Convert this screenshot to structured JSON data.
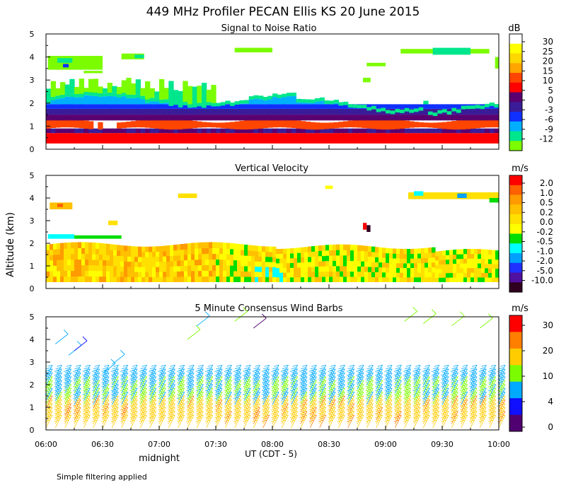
{
  "chart_data": [
    {
      "type": "heatmap",
      "title": "Signal to Noise Ratio",
      "unit": "dB",
      "ylim": [
        0,
        5
      ],
      "yticks": [
        "0",
        "1",
        "2",
        "3",
        "4",
        "5"
      ],
      "colorbar": [
        "30",
        "25",
        "20",
        "15",
        "10",
        "5",
        "0",
        "-3",
        "-6",
        "-9",
        "-12"
      ],
      "colors": [
        "#ffffff",
        "#ffff00",
        "#ffd700",
        "#ffa500",
        "#ff4500",
        "#ff0000",
        "#5a0070",
        "#3a1c99",
        "#1030ff",
        "#00b0ff",
        "#00e68c",
        "#7cfc00"
      ]
    },
    {
      "type": "heatmap",
      "title": "Vertical Velocity",
      "unit": "m/s",
      "ylim": [
        0,
        5
      ],
      "yticks": [
        "0",
        "1",
        "2",
        "3",
        "4",
        "5"
      ],
      "colorbar": [
        "2.0",
        "1.0",
        "0.5",
        "0.2",
        "0.0",
        "-0.2",
        "-0.5",
        "-1.0",
        "-2.0",
        "-5.0",
        "-10.0"
      ],
      "colors": [
        "#ff0000",
        "#ff6000",
        "#ff9a00",
        "#ffc000",
        "#ffe000",
        "#ffff00",
        "#00dd00",
        "#00ffff",
        "#00a0ff",
        "#2030ff",
        "#5010a0",
        "#300020"
      ]
    },
    {
      "type": "scatter",
      "title": "5 Minute Consensus Wind Barbs",
      "unit": "m/s",
      "ylim": [
        0,
        5
      ],
      "yticks": [
        "0",
        "1",
        "2",
        "3",
        "4",
        "5"
      ],
      "colorbar": [
        "30",
        "20",
        "10",
        "4",
        "0"
      ],
      "colors": [
        "#ff0000",
        "#ff7f00",
        "#ffcc00",
        "#7cfc00",
        "#00aaff",
        "#1010ff",
        "#500070"
      ]
    }
  ],
  "header": {
    "title": "449 MHz Profiler PECAN Ellis KS 20 June 2015"
  },
  "axes": {
    "ylabel": "Altitude (km)",
    "xlabel": "UT  (CDT - 5)",
    "xticks": [
      "06:00",
      "06:30",
      "07:00",
      "07:30",
      "08:00",
      "08:30",
      "09:00",
      "09:30",
      "10:00"
    ],
    "midnight_label": "midnight"
  },
  "footer": {
    "note": "Simple filtering applied"
  }
}
